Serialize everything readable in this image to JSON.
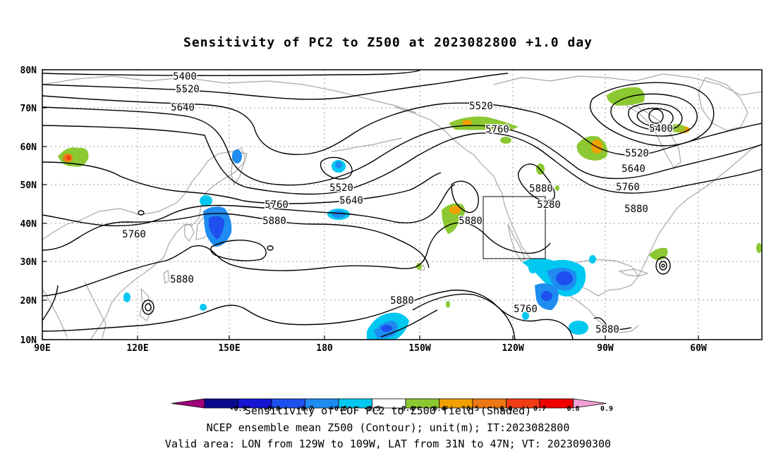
{
  "title": "Sensitivity of PC2 to Z500 at 2023082800 +1.0 day",
  "captions": {
    "line1": "Sensitivity of EOF PC2 to Z500 field (Shaded)",
    "line2": "NCEP ensemble mean Z500 (Contour); unit(m); IT:2023082800",
    "line3": "Valid area: LON from 129W to 109W, LAT from 31N to 47N; VT: 2023090300"
  },
  "map": {
    "lon_labels": [
      "90E",
      "120E",
      "150E",
      "180",
      "150W",
      "120W",
      "90W",
      "60W"
    ],
    "lat_labels": [
      "80N",
      "70N",
      "60N",
      "50N",
      "40N",
      "30N",
      "20N",
      "10N"
    ],
    "contour_labels": [
      "5400",
      "5520",
      "5640",
      "5520",
      "5640",
      "5760",
      "5880",
      "5760",
      "5880",
      "5520",
      "5760",
      "5880",
      "5880",
      "5760",
      "5880",
      "5880",
      "5280",
      "5400",
      "5520",
      "5640",
      "5760",
      "5880",
      "5880"
    ],
    "valid_area": {
      "lon_from": "129W",
      "lon_to": "109W",
      "lat_from": "31N",
      "lat_to": "47N"
    }
  },
  "colorbar": {
    "tick_labels": [
      "-0.9",
      "-0.8",
      "-0.7",
      "-0.6",
      "-0.5",
      "-0.4",
      "0.4",
      "0.5",
      "0.6",
      "0.7",
      "0.8",
      "0.9"
    ],
    "colors": [
      "#a0007a",
      "#0a0a8c",
      "#1414d2",
      "#1e50f0",
      "#1e8cf0",
      "#00c8f0",
      "#ffffff",
      "#8cc832",
      "#f0a000",
      "#f07814",
      "#f03c14",
      "#f00000",
      "#f0a0d2"
    ]
  }
}
